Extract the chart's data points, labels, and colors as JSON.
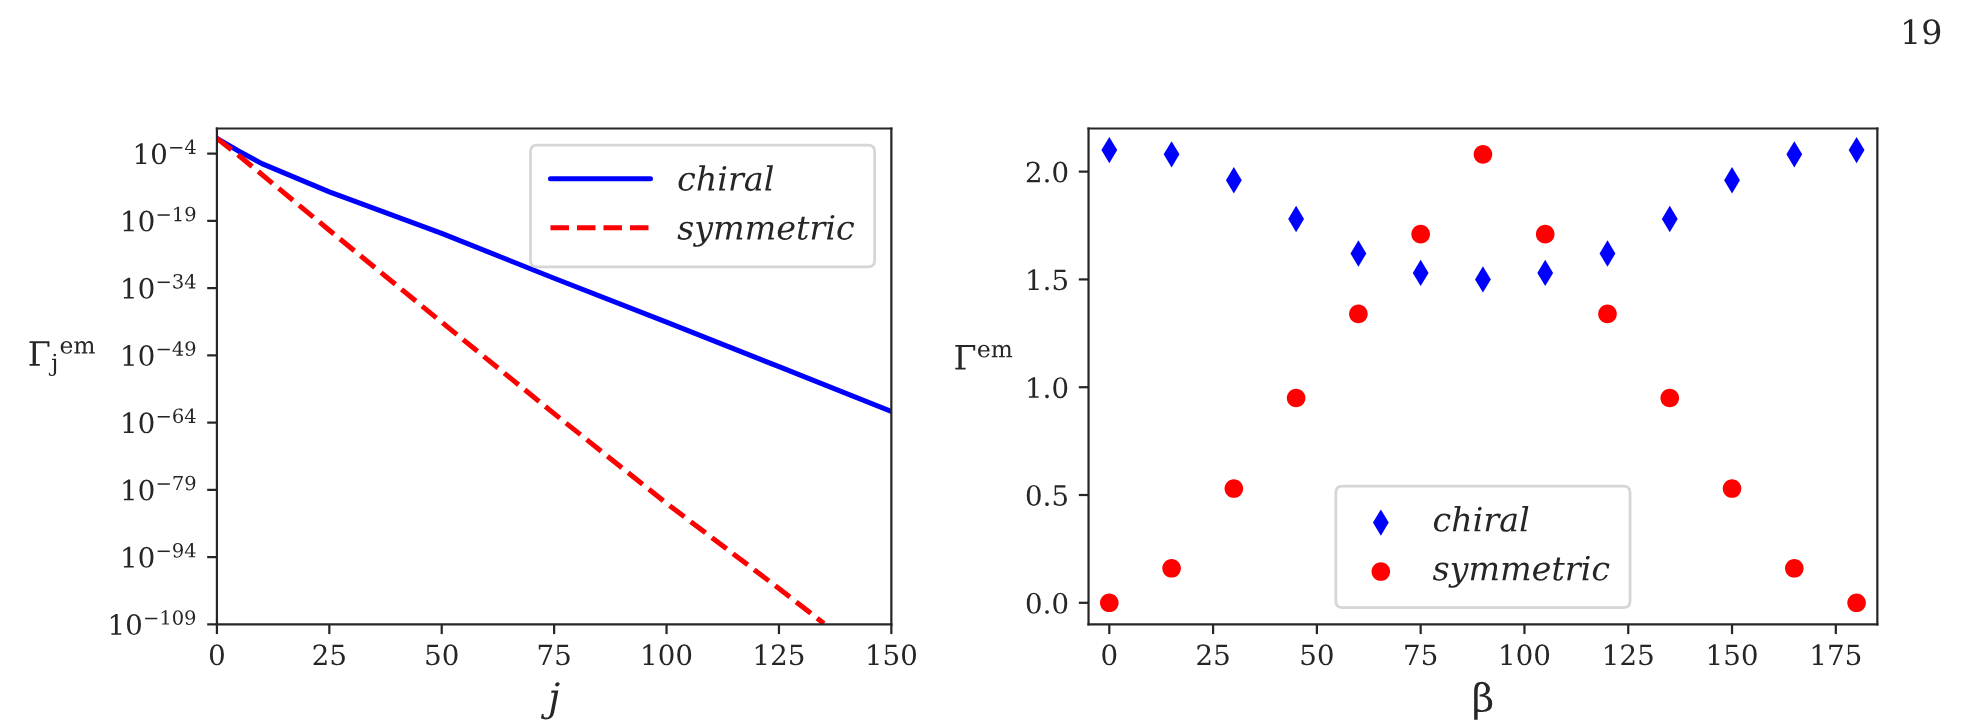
{
  "chart_data": [
    {
      "type": "line",
      "xlabel": "j",
      "ylabel": "Γ$_{j}$$^{em}$",
      "log": "y",
      "xlim": [
        0,
        150
      ],
      "xticks": [
        0,
        25,
        50,
        75,
        100,
        125,
        150
      ],
      "ylim": [
        1e-109,
        40
      ],
      "yticks": [
        {
          "value": 0.0001,
          "label": "10$^{−4}$"
        },
        {
          "value": 1e-19,
          "label": "10$^{−19}$"
        },
        {
          "value": 1e-34,
          "label": "10$^{−34}$"
        },
        {
          "value": 1e-49,
          "label": "10$^{−49}$"
        },
        {
          "value": 1e-64,
          "label": "10$^{−64}$"
        },
        {
          "value": 1e-79,
          "label": "10$^{−79}$"
        },
        {
          "value": 1e-94,
          "label": "10$^{−94}$"
        },
        {
          "value": 1e-109,
          "label": "10$^{−109}$"
        }
      ],
      "legend": "top right",
      "grid": false,
      "series": [
        {
          "name": "chiral",
          "color": "#0000ff",
          "line_style": "solid",
          "marker": "none",
          "x": [
            0,
            5,
            10,
            25,
            50,
            75,
            100,
            125,
            150
          ],
          "values": [
            0.25,
            0.0003,
            6e-07,
            3e-13,
            1.6e-22,
            1.6e-32,
            2.5e-42,
            3e-52,
            3e-62
          ]
        },
        {
          "name": "symmetric",
          "color": "#ff0000",
          "line_style": "dashed",
          "marker": "none",
          "x": [
            0,
            5,
            25,
            50,
            75,
            100,
            125,
            135
          ],
          "values": [
            0.25,
            3e-05,
            8e-22,
            2.5e-42,
            1e-62,
            1e-82,
            1e-101,
            1.6e-109
          ]
        }
      ]
    },
    {
      "type": "scatter",
      "xlabel": "β",
      "ylabel": "Γ$^{em}$",
      "xlim": [
        -5,
        185
      ],
      "xticks": [
        0,
        25,
        50,
        75,
        100,
        125,
        150,
        175
      ],
      "ylim": [
        -0.1,
        2.2
      ],
      "yticks": [
        {
          "value": 0,
          "label": "0.0"
        },
        {
          "value": 0.5,
          "label": "0.5"
        },
        {
          "value": 1,
          "label": "1.0"
        },
        {
          "value": 1.5,
          "label": "1.5"
        },
        {
          "value": 2,
          "label": "2.0"
        }
      ],
      "legend": "bottom",
      "grid": false,
      "annotations": [
        "19"
      ],
      "x": [
        0,
        15,
        30,
        45,
        60,
        75,
        90,
        105,
        120,
        135,
        150,
        165,
        180
      ],
      "series": [
        {
          "name": "chiral",
          "color": "#0000ff",
          "marker": "diamond",
          "values": [
            2.1,
            2.08,
            1.96,
            1.78,
            1.62,
            1.53,
            1.5,
            1.53,
            1.62,
            1.78,
            1.96,
            2.08,
            2.1
          ]
        },
        {
          "name": "symmetric",
          "color": "#ff0000",
          "marker": "circle",
          "values": [
            0,
            0.16,
            0.53,
            0.95,
            1.34,
            1.71,
            2.08,
            1.71,
            1.34,
            0.95,
            0.53,
            0.16,
            0
          ]
        }
      ]
    }
  ]
}
